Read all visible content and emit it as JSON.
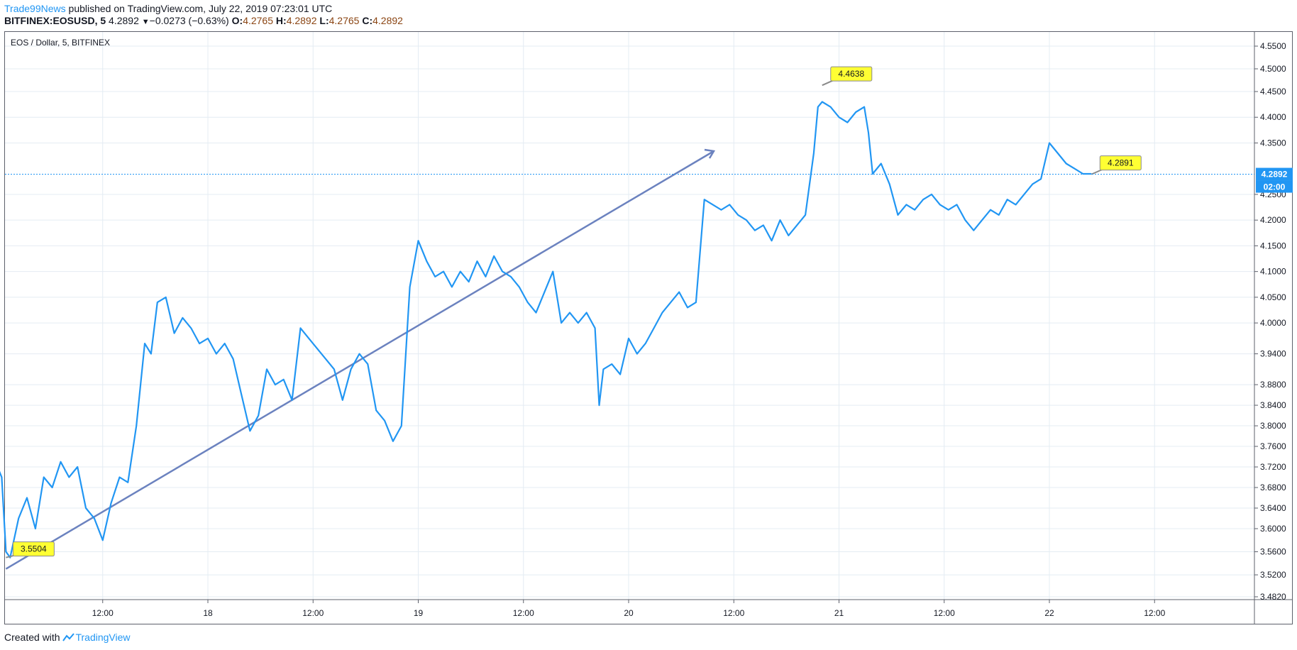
{
  "header": {
    "publisher": "Trade99News",
    "published_text": "published on TradingView.com, July 22, 2019 07:23:01 UTC",
    "symbol": "BITFINEX:EOSUSD, 5",
    "last": "4.2892",
    "change_arrow": "▼",
    "change": "−0.0273 (−0.63%)",
    "o_label": "O:",
    "o_value": "4.2765",
    "h_label": "H:",
    "h_value": "4.2892",
    "l_label": "L:",
    "l_value": "4.2765",
    "c_label": "C:",
    "c_value": "4.2892"
  },
  "footer": {
    "created_with": "Created with",
    "brand": "TradingView",
    "brand_icon": "tradingview-logo-icon"
  },
  "colors": {
    "line": "#2196f3",
    "trend": "#6b82bf",
    "label_bg": "#ffff33",
    "price_tag": "#2196f3",
    "grid": "#e4ecf3"
  },
  "chart_data": {
    "type": "line",
    "title": "EOS / Dollar, 5, BITFINEX",
    "y_ticks": [
      "4.5500",
      "4.5000",
      "4.4500",
      "4.4000",
      "4.3500",
      "4.2500",
      "4.2000",
      "4.1500",
      "4.1000",
      "4.0500",
      "4.0000",
      "3.9400",
      "3.8800",
      "3.8400",
      "3.8000",
      "3.7600",
      "3.7200",
      "3.6800",
      "3.6400",
      "3.6000",
      "3.5600",
      "3.5200",
      "3.4820"
    ],
    "x_ticks": [
      "12:00",
      "18",
      "12:00",
      "19",
      "12:00",
      "20",
      "12:00",
      "21",
      "12:00",
      "22",
      "12:00"
    ],
    "series": [
      {
        "values": [
          [
            17.0,
            3.72
          ],
          [
            17.02,
            3.7
          ],
          [
            17.04,
            3.56
          ],
          [
            17.06,
            3.55
          ],
          [
            17.1,
            3.62
          ],
          [
            17.14,
            3.66
          ],
          [
            17.18,
            3.6
          ],
          [
            17.22,
            3.7
          ],
          [
            17.26,
            3.68
          ],
          [
            17.3,
            3.73
          ],
          [
            17.34,
            3.7
          ],
          [
            17.38,
            3.72
          ],
          [
            17.42,
            3.64
          ],
          [
            17.46,
            3.62
          ],
          [
            17.5,
            3.58
          ],
          [
            17.54,
            3.65
          ],
          [
            17.58,
            3.7
          ],
          [
            17.62,
            3.69
          ],
          [
            17.66,
            3.8
          ],
          [
            17.7,
            3.96
          ],
          [
            17.73,
            3.94
          ],
          [
            17.76,
            4.04
          ],
          [
            17.8,
            4.05
          ],
          [
            17.84,
            3.98
          ],
          [
            17.88,
            4.01
          ],
          [
            17.92,
            3.99
          ],
          [
            17.96,
            3.96
          ],
          [
            18.0,
            3.97
          ],
          [
            18.04,
            3.94
          ],
          [
            18.08,
            3.96
          ],
          [
            18.12,
            3.93
          ],
          [
            18.16,
            3.86
          ],
          [
            18.2,
            3.79
          ],
          [
            18.24,
            3.82
          ],
          [
            18.28,
            3.91
          ],
          [
            18.32,
            3.88
          ],
          [
            18.36,
            3.89
          ],
          [
            18.4,
            3.85
          ],
          [
            18.44,
            3.99
          ],
          [
            18.48,
            3.97
          ],
          [
            18.52,
            3.95
          ],
          [
            18.56,
            3.93
          ],
          [
            18.6,
            3.91
          ],
          [
            18.64,
            3.85
          ],
          [
            18.68,
            3.91
          ],
          [
            18.72,
            3.94
          ],
          [
            18.76,
            3.92
          ],
          [
            18.8,
            3.83
          ],
          [
            18.84,
            3.81
          ],
          [
            18.88,
            3.77
          ],
          [
            18.92,
            3.8
          ],
          [
            18.96,
            4.07
          ],
          [
            19.0,
            4.16
          ],
          [
            19.04,
            4.12
          ],
          [
            19.08,
            4.09
          ],
          [
            19.12,
            4.1
          ],
          [
            19.16,
            4.07
          ],
          [
            19.2,
            4.1
          ],
          [
            19.24,
            4.08
          ],
          [
            19.28,
            4.12
          ],
          [
            19.32,
            4.09
          ],
          [
            19.36,
            4.13
          ],
          [
            19.4,
            4.1
          ],
          [
            19.44,
            4.09
          ],
          [
            19.48,
            4.07
          ],
          [
            19.52,
            4.04
          ],
          [
            19.56,
            4.02
          ],
          [
            19.6,
            4.06
          ],
          [
            19.64,
            4.1
          ],
          [
            19.68,
            4.0
          ],
          [
            19.72,
            4.02
          ],
          [
            19.76,
            4.0
          ],
          [
            19.8,
            4.02
          ],
          [
            19.84,
            3.99
          ],
          [
            19.86,
            3.84
          ],
          [
            19.88,
            3.91
          ],
          [
            19.92,
            3.92
          ],
          [
            19.96,
            3.9
          ],
          [
            20.0,
            3.97
          ],
          [
            20.04,
            3.94
          ],
          [
            20.08,
            3.96
          ],
          [
            20.12,
            3.99
          ],
          [
            20.16,
            4.02
          ],
          [
            20.2,
            4.04
          ],
          [
            20.24,
            4.06
          ],
          [
            20.28,
            4.03
          ],
          [
            20.32,
            4.04
          ],
          [
            20.36,
            4.24
          ],
          [
            20.4,
            4.23
          ],
          [
            20.44,
            4.22
          ],
          [
            20.48,
            4.23
          ],
          [
            20.52,
            4.21
          ],
          [
            20.56,
            4.2
          ],
          [
            20.6,
            4.18
          ],
          [
            20.64,
            4.19
          ],
          [
            20.68,
            4.16
          ],
          [
            20.72,
            4.2
          ],
          [
            20.76,
            4.17
          ],
          [
            20.8,
            4.19
          ],
          [
            20.84,
            4.21
          ],
          [
            20.88,
            4.33
          ],
          [
            20.9,
            4.42
          ],
          [
            20.92,
            4.43
          ],
          [
            20.96,
            4.42
          ],
          [
            21.0,
            4.4
          ],
          [
            21.04,
            4.39
          ],
          [
            21.08,
            4.41
          ],
          [
            21.12,
            4.42
          ],
          [
            21.14,
            4.37
          ],
          [
            21.16,
            4.29
          ],
          [
            21.2,
            4.31
          ],
          [
            21.24,
            4.27
          ],
          [
            21.28,
            4.21
          ],
          [
            21.32,
            4.23
          ],
          [
            21.36,
            4.22
          ],
          [
            21.4,
            4.24
          ],
          [
            21.44,
            4.25
          ],
          [
            21.48,
            4.23
          ],
          [
            21.52,
            4.22
          ],
          [
            21.56,
            4.23
          ],
          [
            21.6,
            4.2
          ],
          [
            21.64,
            4.18
          ],
          [
            21.68,
            4.2
          ],
          [
            21.72,
            4.22
          ],
          [
            21.76,
            4.21
          ],
          [
            21.8,
            4.24
          ],
          [
            21.84,
            4.23
          ],
          [
            21.88,
            4.25
          ],
          [
            21.92,
            4.27
          ],
          [
            21.96,
            4.28
          ],
          [
            22.0,
            4.35
          ],
          [
            22.04,
            4.33
          ],
          [
            22.08,
            4.31
          ],
          [
            22.12,
            4.3
          ],
          [
            22.16,
            4.29
          ],
          [
            22.2,
            4.29
          ]
        ]
      }
    ],
    "trendline": {
      "start": [
        17.04,
        3.55
      ],
      "end": [
        20.62,
        4.3
      ]
    },
    "annotations": [
      {
        "text": "3.5504",
        "x": 17.04,
        "y": 3.55
      },
      {
        "text": "4.4638",
        "x": 20.92,
        "y": 4.4638
      },
      {
        "text": "4.2891",
        "x": 22.2,
        "y": 4.2891
      }
    ],
    "current_price": "4.2892",
    "countdown": "02:00",
    "grid": true
  }
}
